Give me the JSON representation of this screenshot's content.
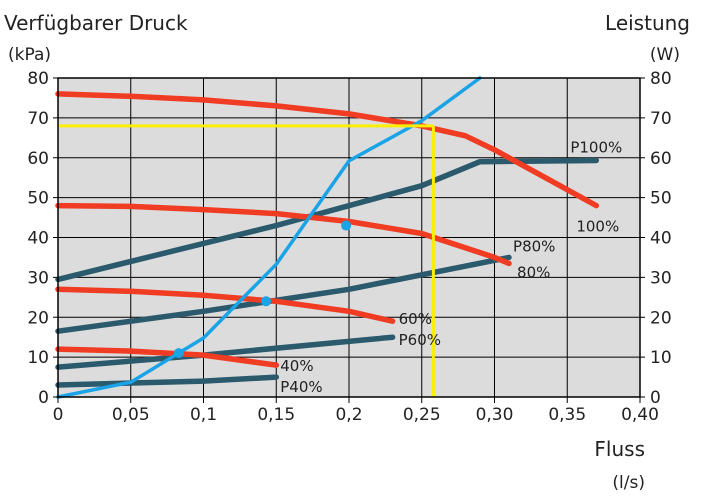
{
  "chart_data": {
    "type": "line",
    "title_left": "Verfügbarer Druck",
    "unit_left": "(kPa)",
    "title_right": "Leistung",
    "unit_right": "(W)",
    "xlabel": "Fluss",
    "xunit": "(l/s)",
    "xlim": [
      0,
      0.4
    ],
    "ylim": [
      0,
      80
    ],
    "y2lim": [
      0,
      80
    ],
    "x_ticks": [
      "0",
      "0,05",
      "0,1",
      "0,15",
      "0,2",
      "0,25",
      "0,30",
      "0,35",
      "0,40"
    ],
    "y_ticks": [
      "0",
      "10",
      "20",
      "30",
      "40",
      "50",
      "60",
      "70",
      "80"
    ],
    "y2_ticks": [
      "0",
      "10",
      "20",
      "30",
      "40",
      "50",
      "60",
      "70",
      "80"
    ],
    "grid": true,
    "background": "#dcdcdc",
    "colors": {
      "pressure": "#f03c23",
      "power": "#2a5a6c",
      "system": "#1aa3e6",
      "operating": "#ffee00"
    },
    "series": [
      {
        "name": "100%",
        "kind": "pressure",
        "points": [
          [
            0,
            76
          ],
          [
            0.05,
            75.4
          ],
          [
            0.1,
            74.5
          ],
          [
            0.15,
            73
          ],
          [
            0.2,
            71
          ],
          [
            0.25,
            68
          ],
          [
            0.28,
            65.5
          ],
          [
            0.3,
            62
          ],
          [
            0.33,
            56
          ],
          [
            0.37,
            48
          ]
        ]
      },
      {
        "name": "80%",
        "kind": "pressure",
        "points": [
          [
            0,
            48
          ],
          [
            0.05,
            47.8
          ],
          [
            0.1,
            47
          ],
          [
            0.15,
            46
          ],
          [
            0.2,
            44
          ],
          [
            0.25,
            41
          ],
          [
            0.3,
            35
          ],
          [
            0.31,
            33.5
          ]
        ]
      },
      {
        "name": "60%",
        "kind": "pressure",
        "points": [
          [
            0,
            27
          ],
          [
            0.05,
            26.5
          ],
          [
            0.1,
            25.5
          ],
          [
            0.15,
            24
          ],
          [
            0.2,
            21.5
          ],
          [
            0.23,
            19
          ]
        ]
      },
      {
        "name": "40%",
        "kind": "pressure",
        "points": [
          [
            0,
            12
          ],
          [
            0.05,
            11.5
          ],
          [
            0.1,
            10.5
          ],
          [
            0.15,
            8
          ]
        ]
      },
      {
        "name": "P100%",
        "kind": "power",
        "points": [
          [
            0,
            29.5
          ],
          [
            0.15,
            43
          ],
          [
            0.25,
            53
          ],
          [
            0.29,
            59
          ],
          [
            0.37,
            59.3
          ]
        ]
      },
      {
        "name": "P80%",
        "kind": "power",
        "points": [
          [
            0,
            16.5
          ],
          [
            0.1,
            21.5
          ],
          [
            0.2,
            27
          ],
          [
            0.31,
            35
          ]
        ]
      },
      {
        "name": "P60%",
        "kind": "power",
        "points": [
          [
            0,
            7.5
          ],
          [
            0.1,
            10.5
          ],
          [
            0.23,
            15
          ]
        ]
      },
      {
        "name": "P40%",
        "kind": "power",
        "points": [
          [
            0,
            3
          ],
          [
            0.1,
            4
          ],
          [
            0.15,
            5
          ]
        ]
      },
      {
        "name": "",
        "kind": "system",
        "points": [
          [
            0,
            0
          ],
          [
            0.05,
            3.7
          ],
          [
            0.1,
            14.8
          ],
          [
            0.15,
            33.3
          ],
          [
            0.2,
            59.2
          ],
          [
            0.25,
            69.3
          ],
          [
            0.29,
            80
          ]
        ]
      }
    ],
    "system_markers": [
      [
        0.083,
        11
      ],
      [
        0.143,
        24
      ],
      [
        0.198,
        43
      ]
    ],
    "operating_point": {
      "x": 0.258,
      "y": 68
    },
    "curve_labels": [
      {
        "series": "P100%",
        "text": "P100%"
      },
      {
        "series": "100%",
        "text": "100%"
      },
      {
        "series": "P80%",
        "text": "P80%"
      },
      {
        "series": "80%",
        "text": "80%"
      },
      {
        "series": "60%",
        "text": "60%"
      },
      {
        "series": "P60%",
        "text": "P60%"
      },
      {
        "series": "40%",
        "text": "40%"
      },
      {
        "series": "P40%",
        "text": "P40%"
      }
    ]
  }
}
